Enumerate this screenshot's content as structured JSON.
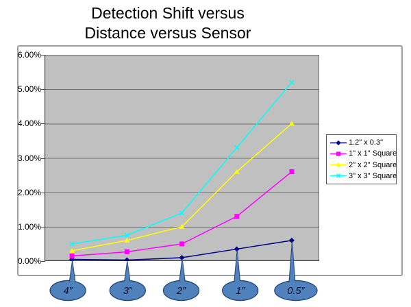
{
  "title": {
    "line1": "Detection Shift versus",
    "line2": "Distance versus Sensor"
  },
  "chart_data": {
    "type": "line",
    "title": "Detection Shift versus Distance versus Sensor",
    "categories": [
      "4”",
      "3”",
      "2”",
      "1”",
      "0.5”"
    ],
    "x_axis_style": "balloon-callouts-pointing-at-first-series",
    "ylabel": "",
    "ylim": [
      0,
      6
    ],
    "yunit": "%",
    "ytick_labels": [
      "6.00%",
      "5.00%",
      "4.00%",
      "3.00%",
      "2.00%",
      "1.00%",
      "0.00%"
    ],
    "grid": true,
    "legend_position": "right",
    "series": [
      {
        "name": "1.2\" x 0.3\"",
        "color": "#000080",
        "marker": "diamond",
        "values": [
          0.05,
          0.03,
          0.1,
          0.35,
          0.6
        ]
      },
      {
        "name": "1\" x 1\" Square",
        "color": "#FF00FF",
        "marker": "square",
        "values": [
          0.15,
          0.27,
          0.5,
          1.3,
          2.6
        ]
      },
      {
        "name": "2\" x 2\" Square",
        "color": "#FFFF00",
        "marker": "triangle",
        "values": [
          0.3,
          0.6,
          1.0,
          2.6,
          4.0
        ]
      },
      {
        "name": "3\" x 3\" Square",
        "color": "#00FFFF",
        "marker": "x",
        "values": [
          0.5,
          0.75,
          1.4,
          3.3,
          5.2
        ]
      }
    ],
    "callout_labels": [
      "4”",
      "3”",
      "2”",
      "1”",
      "0.5”"
    ],
    "style": {
      "plot_bg": "#c0c0c0",
      "gridline": "#6e6e6e",
      "axis": "#3a3a3a",
      "frame_border": "#9f9f9f",
      "callout_fill": "#4f81bd",
      "callout_border": "#2c4d75",
      "callout_text": "#10102a"
    }
  }
}
